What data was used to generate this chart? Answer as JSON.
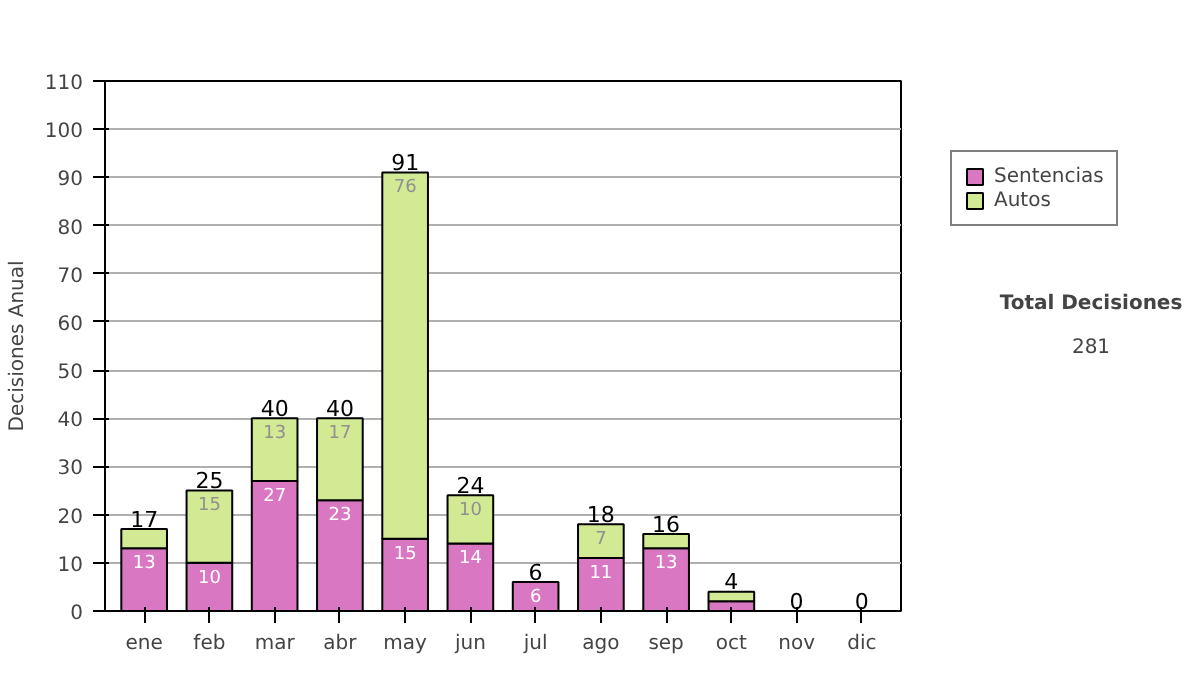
{
  "chart_data": {
    "type": "bar",
    "stacked": true,
    "ylabel": "Decisiones Anual",
    "categories": [
      "ene",
      "feb",
      "mar",
      "abr",
      "may",
      "jun",
      "jul",
      "ago",
      "sep",
      "oct",
      "nov",
      "dic"
    ],
    "series": [
      {
        "name": "Sentencias",
        "color": "#d977c2",
        "values": [
          13,
          10,
          27,
          23,
          15,
          14,
          6,
          11,
          13,
          2,
          0,
          0
        ],
        "value_labels": [
          "13",
          "10",
          "27",
          "23",
          "15",
          "14",
          "6",
          "11",
          "13",
          null,
          null,
          null
        ]
      },
      {
        "name": "Autos",
        "color": "#d3ea95",
        "values": [
          4,
          15,
          13,
          17,
          76,
          10,
          0,
          7,
          3,
          2,
          0,
          0
        ],
        "value_labels": [
          null,
          "15",
          "13",
          "17",
          "76",
          "10",
          null,
          "7",
          null,
          null,
          null,
          null
        ]
      }
    ],
    "totals": [
      "17",
      "25",
      "40",
      "40",
      "91",
      "24",
      "6",
      "18",
      "16",
      "4",
      "0",
      "0"
    ],
    "ylim": [
      0,
      110
    ],
    "yticks": [
      0,
      10,
      20,
      30,
      40,
      50,
      60,
      70,
      80,
      90,
      100,
      110
    ],
    "grid": "y",
    "legend": "right",
    "annotations": [
      "Total Decisiones",
      "281"
    ]
  }
}
